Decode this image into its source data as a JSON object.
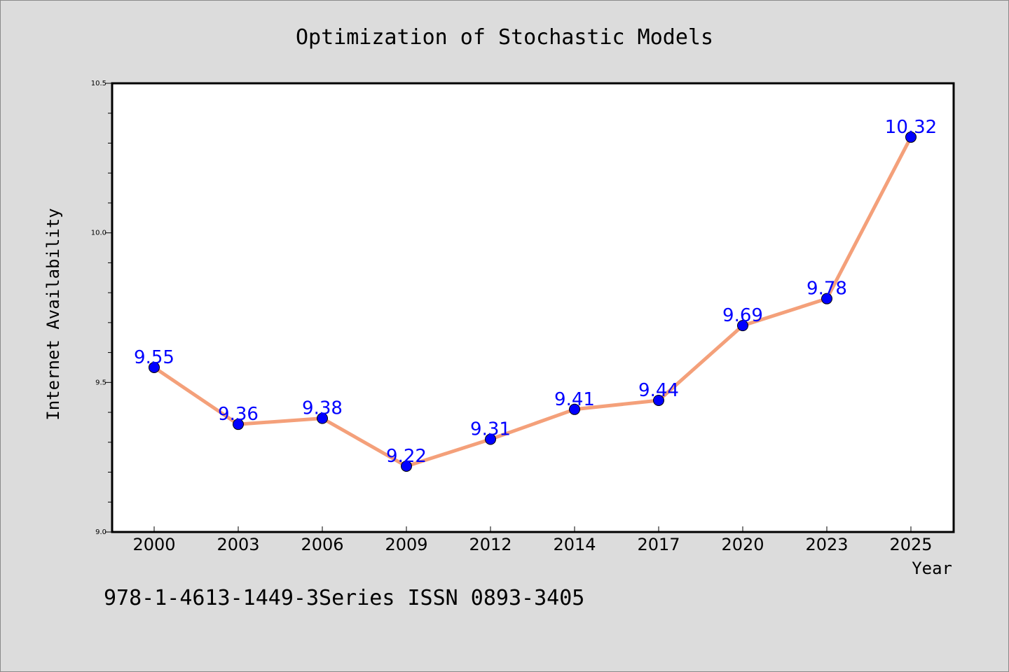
{
  "chart_data": {
    "type": "line",
    "title": "Optimization of Stochastic Models",
    "xlabel": "Year",
    "ylabel": "Internet Availability",
    "categories": [
      "2000",
      "2003",
      "2006",
      "2009",
      "2012",
      "2014",
      "2017",
      "2020",
      "2023",
      "2025"
    ],
    "series": [
      {
        "values": [
          9.55,
          9.36,
          9.38,
          9.22,
          9.31,
          9.41,
          9.44,
          9.69,
          9.78,
          10.32
        ],
        "labels": [
          "9.55",
          "9.36",
          "9.38",
          "9.22",
          "9.31",
          "9.41",
          "9.44",
          "9.69",
          "9.78",
          "10.32"
        ]
      }
    ],
    "ylim": [
      9.0,
      10.5
    ],
    "yticks": [
      "9.0",
      "9.5",
      "10.0",
      "10.5"
    ],
    "yminor_step": 0.1,
    "grid": false,
    "legend": "none",
    "colors": {
      "line": "#f4a07a",
      "marker": "#0000ff",
      "marker_edge": "#000000",
      "data_label": "#0000ff",
      "background": "#dcdcdc",
      "plot_background": "#ffffff"
    }
  },
  "footer": "978-1-4613-1449-3Series ISSN 0893-3405"
}
